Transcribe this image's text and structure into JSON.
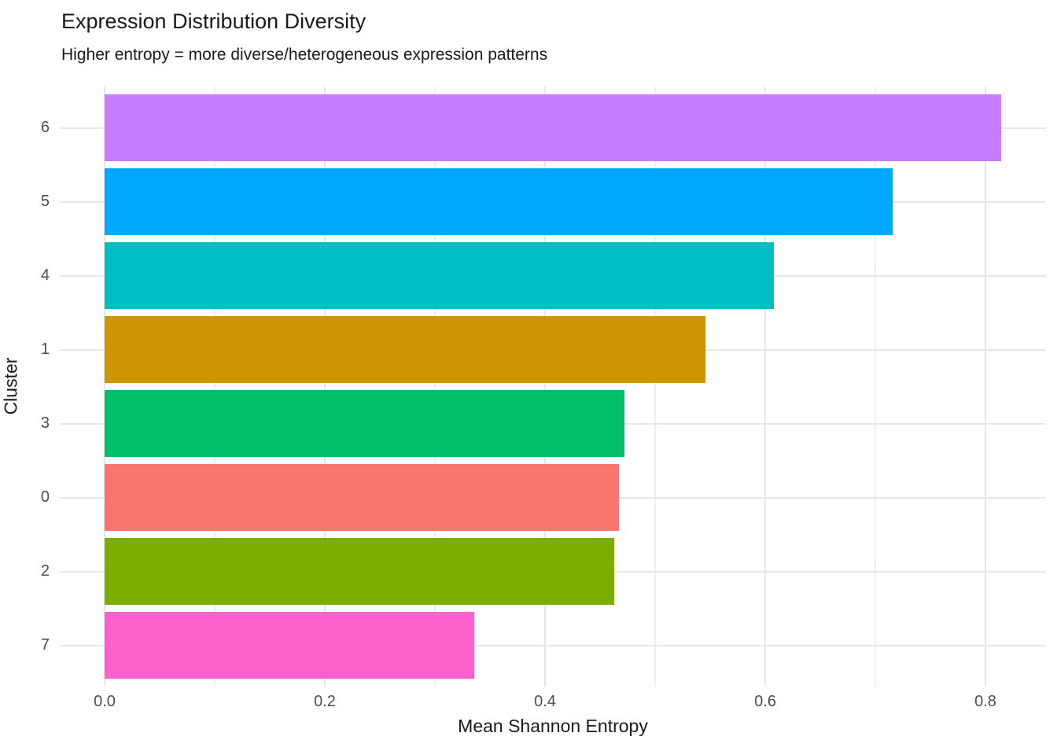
{
  "title": "Expression Distribution Diversity",
  "subtitle": "Higher entropy = more diverse/heterogeneous expression patterns",
  "chart_data": {
    "type": "bar",
    "orientation": "horizontal",
    "title": "Expression Distribution Diversity",
    "subtitle": "Higher entropy = more diverse/heterogeneous expression patterns",
    "xlabel": "Mean Shannon Entropy",
    "ylabel": "Cluster",
    "categories": [
      "6",
      "5",
      "4",
      "1",
      "3",
      "0",
      "2",
      "7"
    ],
    "values": [
      0.814,
      0.716,
      0.608,
      0.546,
      0.472,
      0.467,
      0.463,
      0.336
    ],
    "bar_colors": [
      "#C77CFF",
      "#00A9FF",
      "#00BFC4",
      "#CD9600",
      "#00BE67",
      "#F8766D",
      "#7CAE00",
      "#FF61CC"
    ],
    "xlim": [
      0,
      0.854
    ],
    "x_ticks": [
      0.0,
      0.2,
      0.4,
      0.6,
      0.8
    ],
    "x_tick_labels": [
      "0.0",
      "0.2",
      "0.4",
      "0.6",
      "0.8"
    ],
    "x_minor_ticks": [
      0.1,
      0.3,
      0.5,
      0.7
    ],
    "grid": true,
    "legend": "none",
    "sort": "descending by value"
  },
  "colors": {
    "background": "#ffffff",
    "grid_major": "#e7e7e7",
    "grid_minor": "#efefef",
    "tick_label_text": "#4d4d4d",
    "title_text": "#1a1a1a"
  }
}
